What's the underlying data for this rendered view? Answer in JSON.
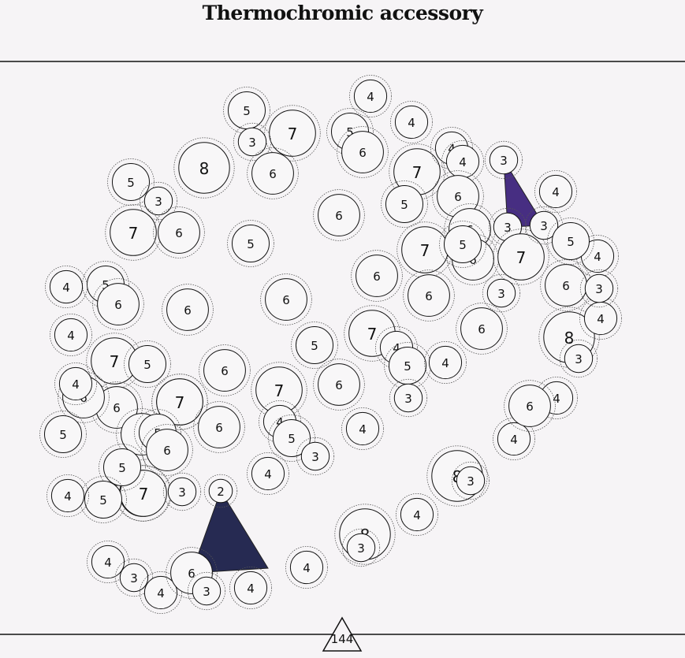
{
  "title": "Thermochromic accessory",
  "footer_label": "144",
  "colors": {
    "background": "#f6f4f6",
    "triangle_purple": "#472e82",
    "triangle_navy": "#262a52",
    "stroke": "#111111"
  },
  "nodes": [
    "5",
    "4",
    "7",
    "5",
    "3",
    "6",
    "4",
    "7",
    "4",
    "8",
    "4",
    "5",
    "3",
    "6",
    "6",
    "3",
    "7",
    "5",
    "6",
    "6",
    "5",
    "6",
    "6",
    "7",
    "6",
    "3",
    "7",
    "7",
    "5",
    "6",
    "4",
    "6",
    "4",
    "5",
    "6",
    "6",
    "6",
    "3",
    "4",
    "4",
    "6",
    "7",
    "8",
    "3",
    "7",
    "5",
    "4",
    "5",
    "7",
    "4",
    "6",
    "3",
    "6",
    "6",
    "5",
    "6",
    "5",
    "4",
    "6",
    "7",
    "4",
    "7",
    "5",
    "4",
    "5",
    "3",
    "4",
    "8",
    "5",
    "6",
    "4",
    "7",
    "5",
    "3",
    "3",
    "5",
    "2",
    "6",
    "8",
    "4",
    "4",
    "4",
    "3",
    "3",
    "4",
    "6",
    "4",
    "3",
    "4",
    "4",
    "3",
    "4"
  ]
}
